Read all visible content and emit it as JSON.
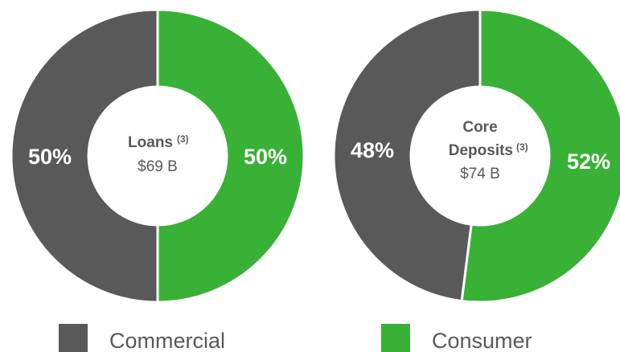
{
  "colors": {
    "commercial": "#595959",
    "consumer": "#38b136",
    "text": "#595959"
  },
  "chart_data": [
    {
      "type": "pie",
      "variant": "donut",
      "center_title_lines": [
        "Loans"
      ],
      "center_note": "(3)",
      "center_value": "$69 B",
      "slices": [
        {
          "name": "Commercial",
          "value": 50,
          "label": "50%"
        },
        {
          "name": "Consumer",
          "value": 50,
          "label": "50%"
        }
      ]
    },
    {
      "type": "pie",
      "variant": "donut",
      "center_title_lines": [
        "Core",
        "Deposits"
      ],
      "center_note": "(3)",
      "center_value": "$74 B",
      "slices": [
        {
          "name": "Commercial",
          "value": 48,
          "label": "48%"
        },
        {
          "name": "Consumer",
          "value": 52,
          "label": "52%"
        }
      ]
    }
  ],
  "legend": {
    "items": [
      {
        "label": "Commercial",
        "color": "#595959"
      },
      {
        "label": "Consumer",
        "color": "#38b136"
      }
    ]
  }
}
